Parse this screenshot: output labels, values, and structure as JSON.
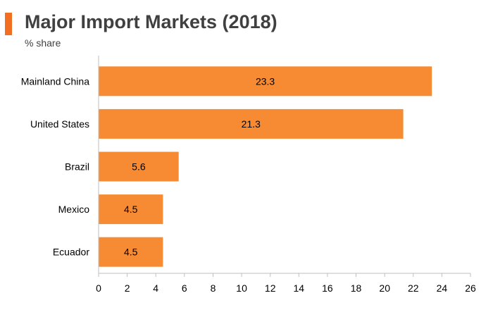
{
  "chart_data": {
    "type": "bar",
    "orientation": "horizontal",
    "title": "Major Import Markets (2018)",
    "subtitle": "% share",
    "categories": [
      "Mainland China",
      "United States",
      "Brazil",
      "Mexico",
      "Ecuador"
    ],
    "values": [
      23.3,
      21.3,
      5.6,
      4.5,
      4.5
    ],
    "data_labels": [
      "23.3",
      "21.3",
      "5.6",
      "4.5",
      "4.5"
    ],
    "xlim": [
      0,
      26
    ],
    "x_ticks": [
      0,
      2,
      4,
      6,
      8,
      10,
      12,
      14,
      16,
      18,
      20,
      22,
      24,
      26
    ],
    "grid": false,
    "colors": {
      "bar": "#F68B33",
      "accent": "#F26F21",
      "axis": "#BFBFBF",
      "text": "#000000",
      "title": "#404040"
    }
  }
}
